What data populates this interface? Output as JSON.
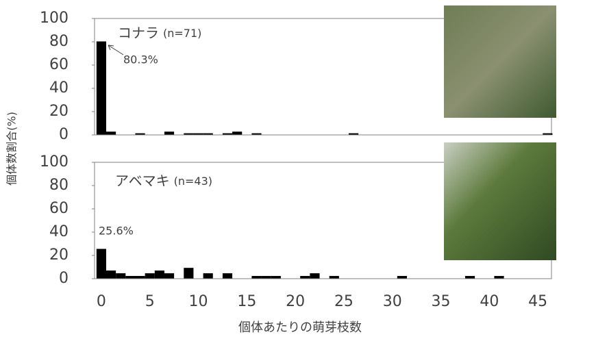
{
  "chart_data": [
    {
      "type": "bar",
      "label": "コナラ",
      "n_label": "(n=71)",
      "annotation": "80.3%",
      "ylabel": "個体数割合(%)",
      "x": [
        0,
        1,
        4,
        7,
        9,
        10,
        11,
        13,
        14,
        16,
        26,
        46
      ],
      "values": [
        80.3,
        2.8,
        1.4,
        2.8,
        1.4,
        1.4,
        1.4,
        1.4,
        2.8,
        1.4,
        1.4,
        1.4
      ],
      "color": "#000000",
      "xlim": [
        -0.7,
        46.4
      ],
      "ylim": [
        0,
        100
      ],
      "yticks": [
        0,
        20,
        40,
        60,
        80,
        100
      ]
    },
    {
      "type": "bar",
      "label": "アベマキ",
      "n_label": "(n=43)",
      "annotation": "25.6%",
      "xlabel": "個体あたりの萌芽枝数",
      "x": [
        0,
        1,
        2,
        3,
        4,
        5,
        6,
        7,
        9,
        11,
        13,
        16,
        17,
        18,
        21,
        22,
        24,
        31,
        38,
        41
      ],
      "values": [
        25.6,
        7.0,
        4.65,
        2.33,
        2.33,
        4.65,
        7.0,
        4.65,
        9.3,
        4.65,
        4.65,
        2.33,
        2.33,
        2.33,
        2.33,
        4.65,
        2.33,
        2.33,
        2.33,
        2.33
      ],
      "color": "#000000",
      "xlim": [
        -0.7,
        46.4
      ],
      "ylim": [
        0,
        100
      ],
      "yticks": [
        0,
        20,
        40,
        60,
        80,
        100
      ],
      "xticks": [
        0,
        5,
        10,
        15,
        20,
        25,
        30,
        35,
        40,
        45
      ]
    }
  ]
}
